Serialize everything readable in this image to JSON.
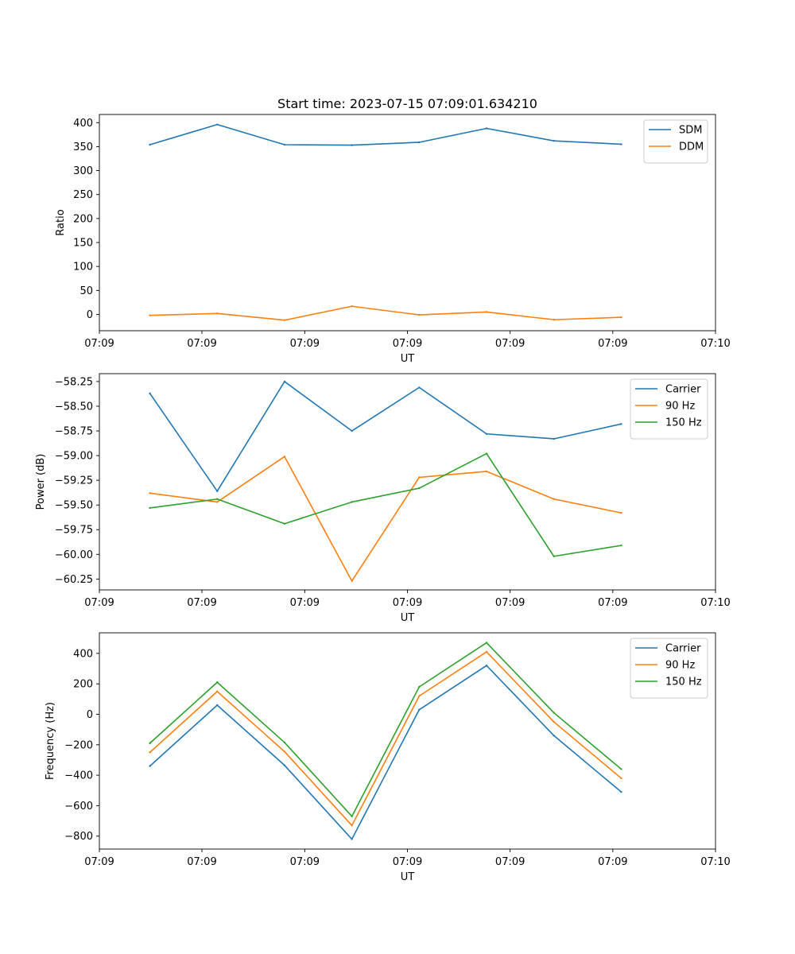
{
  "figure": {
    "title": "Start time: 2023-07-15 07:09:01.634210"
  },
  "chart_data": [
    {
      "type": "line",
      "title": "Start time: 2023-07-15 07:09:01.634210",
      "xlabel": "UT",
      "ylabel": "Ratio",
      "x": [
        0,
        1,
        2,
        3,
        4,
        5,
        6,
        7
      ],
      "xlim": [
        -0.75,
        8.4
      ],
      "x_ticks": [
        -0.75,
        0.773,
        2.3,
        3.825,
        5.35,
        6.875,
        8.4
      ],
      "x_tick_labels": [
        "07:09",
        "07:09",
        "07:09",
        "07:09",
        "07:09",
        "07:09",
        "07:10"
      ],
      "ylim": [
        -34,
        417
      ],
      "y_ticks": [
        0,
        50,
        100,
        150,
        200,
        250,
        300,
        350,
        400
      ],
      "y_tick_labels": [
        "0",
        "50",
        "100",
        "150",
        "200",
        "250",
        "300",
        "350",
        "400"
      ],
      "legend": "upper right",
      "series": [
        {
          "name": "SDM",
          "color": "#1f77b4",
          "values": [
            354,
            396,
            354,
            353,
            359,
            388,
            362,
            355
          ]
        },
        {
          "name": "DDM",
          "color": "#ff7f0e",
          "values": [
            -2,
            2,
            -12,
            17,
            -1,
            5,
            -11,
            -6
          ]
        }
      ]
    },
    {
      "type": "line",
      "title": "",
      "xlabel": "UT",
      "ylabel": "Power (dB)",
      "x": [
        0,
        1,
        2,
        3,
        4,
        5,
        6,
        7
      ],
      "xlim": [
        -0.75,
        8.4
      ],
      "x_ticks": [
        -0.75,
        0.773,
        2.3,
        3.825,
        5.35,
        6.875,
        8.4
      ],
      "x_tick_labels": [
        "07:09",
        "07:09",
        "07:09",
        "07:09",
        "07:09",
        "07:09",
        "07:10"
      ],
      "ylim": [
        -60.36,
        -58.17
      ],
      "y_ticks": [
        -58.25,
        -58.5,
        -58.75,
        -59.0,
        -59.25,
        -59.5,
        -59.75,
        -60.0,
        -60.25
      ],
      "y_tick_labels": [
        "−58.25",
        "−58.50",
        "−58.75",
        "−59.00",
        "−59.25",
        "−59.50",
        "−59.75",
        "−60.00",
        "−60.25"
      ],
      "legend": "upper right",
      "series": [
        {
          "name": "Carrier",
          "color": "#1f77b4",
          "values": [
            -58.37,
            -59.36,
            -58.25,
            -58.75,
            -58.31,
            -58.78,
            -58.83,
            -58.68
          ]
        },
        {
          "name": "90 Hz",
          "color": "#ff7f0e",
          "values": [
            -59.38,
            -59.47,
            -59.01,
            -60.27,
            -59.22,
            -59.16,
            -59.44,
            -59.58
          ]
        },
        {
          "name": "150 Hz",
          "color": "#2ca02c",
          "values": [
            -59.53,
            -59.44,
            -59.69,
            -59.47,
            -59.33,
            -58.98,
            -60.02,
            -59.91
          ]
        }
      ]
    },
    {
      "type": "line",
      "title": "",
      "xlabel": "UT",
      "ylabel": "Frequency (Hz)",
      "x": [
        0,
        1,
        2,
        3,
        4,
        5,
        6,
        7
      ],
      "xlim": [
        -0.75,
        8.4
      ],
      "x_ticks": [
        -0.75,
        0.773,
        2.3,
        3.825,
        5.35,
        6.875,
        8.4
      ],
      "x_tick_labels": [
        "07:09",
        "07:09",
        "07:09",
        "07:09",
        "07:09",
        "07:09",
        "07:10"
      ],
      "ylim": [
        -885,
        535
      ],
      "y_ticks": [
        400,
        200,
        0,
        -200,
        -400,
        -600,
        -800
      ],
      "y_tick_labels": [
        "400",
        "200",
        "0",
        "−200",
        "−400",
        "−600",
        "−800"
      ],
      "legend": "upper right",
      "series": [
        {
          "name": "Carrier",
          "color": "#1f77b4",
          "values": [
            -340,
            60,
            -335,
            -820,
            30,
            320,
            -140,
            -510
          ]
        },
        {
          "name": "90 Hz",
          "color": "#ff7f0e",
          "values": [
            -250,
            150,
            -245,
            -730,
            120,
            410,
            -50,
            -420
          ]
        },
        {
          "name": "150 Hz",
          "color": "#2ca02c",
          "values": [
            -190,
            210,
            -185,
            -670,
            180,
            470,
            10,
            -360
          ]
        }
      ]
    }
  ]
}
